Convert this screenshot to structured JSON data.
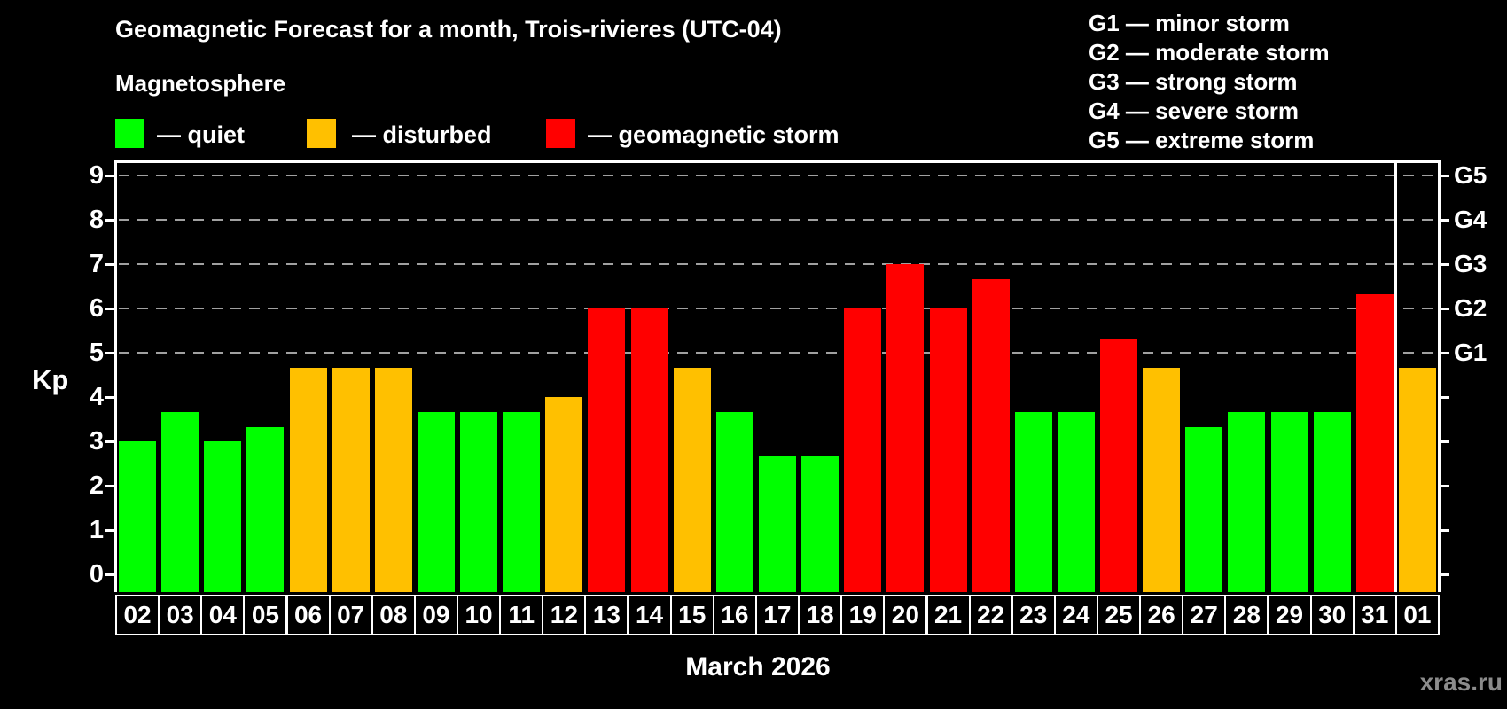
{
  "title": "Geomagnetic Forecast for a month, Trois-rivieres (UTC-04)",
  "subtitle": "Magnetosphere",
  "legend": {
    "items": [
      {
        "key": "quiet",
        "label": "— quiet",
        "color": "#00ff00"
      },
      {
        "key": "disturbed",
        "label": "— disturbed",
        "color": "#ffc000"
      },
      {
        "key": "storm",
        "label": "— geomagnetic storm",
        "color": "#ff0000"
      }
    ]
  },
  "storm_scale_legend": [
    "G1 — minor storm",
    "G2 — moderate storm",
    "G3 — strong storm",
    "G4 — severe storm",
    "G5 — extreme storm"
  ],
  "watermark": "xras.ru",
  "chart_data": {
    "type": "bar",
    "title": "Geomagnetic Forecast for a month, Trois-rivieres (UTC-04)",
    "xlabel": "March 2026",
    "ylabel": "Kp",
    "ylim": [
      0,
      9
    ],
    "yticks": [
      0,
      1,
      2,
      3,
      4,
      5,
      6,
      7,
      8,
      9
    ],
    "gridlines_at_kp": [
      5,
      6,
      7,
      8,
      9
    ],
    "right_axis": [
      {
        "label": "G1",
        "kp": 5
      },
      {
        "label": "G2",
        "kp": 6
      },
      {
        "label": "G3",
        "kp": 7
      },
      {
        "label": "G4",
        "kp": 8
      },
      {
        "label": "G5",
        "kp": 9
      }
    ],
    "status_colors": {
      "quiet": "#00ff00",
      "disturbed": "#ffc000",
      "storm": "#ff0000"
    },
    "categories": [
      "02",
      "03",
      "04",
      "05",
      "06",
      "07",
      "08",
      "09",
      "10",
      "11",
      "12",
      "13",
      "14",
      "15",
      "16",
      "17",
      "18",
      "19",
      "20",
      "21",
      "22",
      "23",
      "24",
      "25",
      "26",
      "27",
      "28",
      "29",
      "30",
      "31",
      "01"
    ],
    "values": [
      3.0,
      3.67,
      3.0,
      3.33,
      4.67,
      4.67,
      4.67,
      3.67,
      3.67,
      3.67,
      4.0,
      6.0,
      6.0,
      4.67,
      3.67,
      2.67,
      2.67,
      6.0,
      7.0,
      6.0,
      6.67,
      3.67,
      3.67,
      5.33,
      4.67,
      3.33,
      3.67,
      3.67,
      3.67,
      6.33,
      4.67
    ],
    "statuses": [
      "quiet",
      "quiet",
      "quiet",
      "quiet",
      "disturbed",
      "disturbed",
      "disturbed",
      "quiet",
      "quiet",
      "quiet",
      "disturbed",
      "storm",
      "storm",
      "disturbed",
      "quiet",
      "quiet",
      "quiet",
      "storm",
      "storm",
      "storm",
      "storm",
      "quiet",
      "quiet",
      "storm",
      "disturbed",
      "quiet",
      "quiet",
      "quiet",
      "quiet",
      "storm",
      "disturbed"
    ],
    "month_separator_before_index": 30
  }
}
